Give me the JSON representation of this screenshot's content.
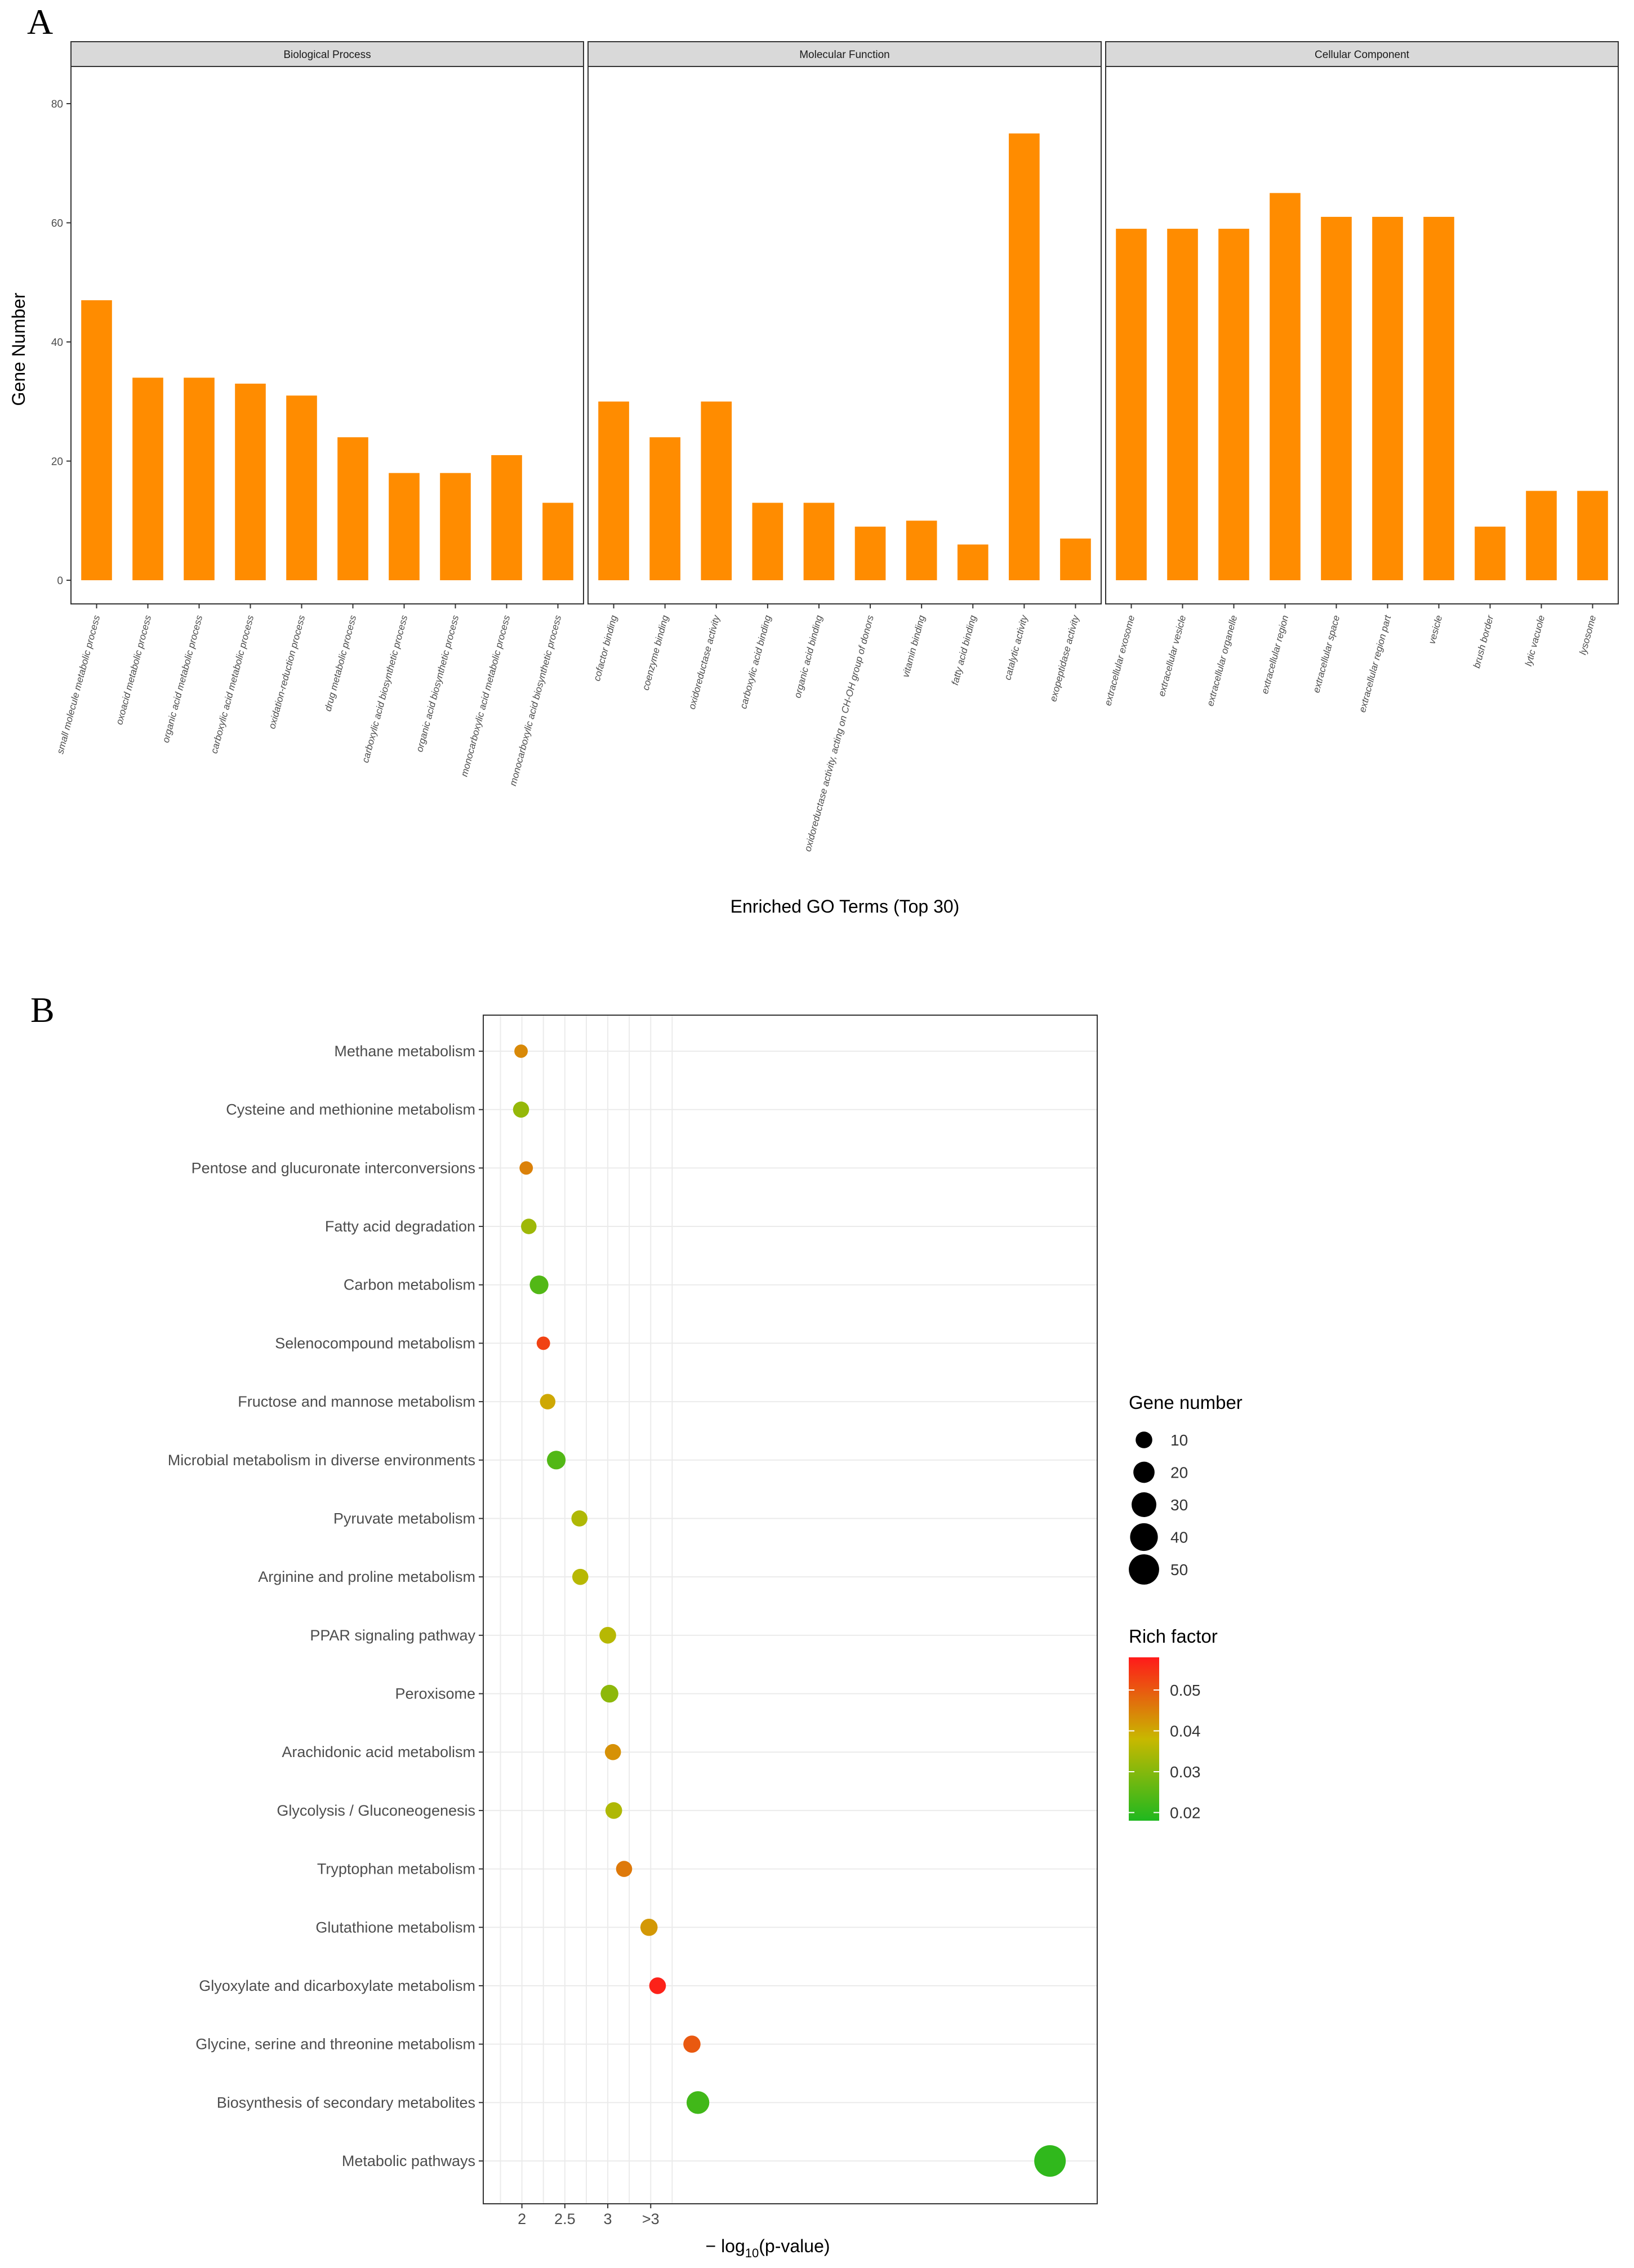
{
  "panel_labels": {
    "a": "A",
    "b": "B"
  },
  "chart_data": [
    {
      "type": "bar",
      "facets": [
        {
          "strip": "Biological Process",
          "categories": [
            "small molecule metabolic process",
            "oxoacid metabolic process",
            "organic acid metabolic process",
            "carboxylic acid metabolic process",
            "oxidation-reduction process",
            "drug metabolic process",
            "carboxylic acid biosynthetic process",
            "organic acid biosynthetic process",
            "monocarboxylic acid metabolic process",
            "monocarboxylic acid biosynthetic process"
          ],
          "values": [
            47,
            34,
            34,
            33,
            31,
            24,
            18,
            18,
            21,
            13
          ]
        },
        {
          "strip": "Molecular Function",
          "categories": [
            "cofactor binding",
            "coenzyme binding",
            "oxidoreductase activity",
            "carboxylic acid binding",
            "organic acid binding",
            "oxidoreductase activity, acting on CH-OH group of donors",
            "vitamin binding",
            "fatty acid binding",
            "catalytic activity",
            "exopeptidase activity"
          ],
          "values": [
            30,
            24,
            30,
            13,
            13,
            9,
            10,
            6,
            75,
            7
          ]
        },
        {
          "strip": "Cellular Component",
          "categories": [
            "extracellular exosome",
            "extracellular vesicle",
            "extracellular organelle",
            "extracellular region",
            "extracellular space",
            "extracellular region part",
            "vesicle",
            "brush border",
            "lytic vacuole",
            "lysosome"
          ],
          "values": [
            59,
            59,
            59,
            65,
            61,
            61,
            61,
            9,
            15,
            15
          ]
        }
      ],
      "ylabel": "Gene Number",
      "xlabel": "Enriched GO Terms (Top 30)",
      "ylim": [
        0,
        85
      ],
      "yticks": [
        0,
        20,
        40,
        60,
        80
      ],
      "bar_color": "#ff8c00",
      "grid": false
    },
    {
      "type": "scatter",
      "categories": [
        "Methane metabolism",
        "Cysteine and methionine metabolism",
        "Pentose and glucuronate interconversions",
        "Fatty acid degradation",
        "Carbon metabolism",
        "Selenocompound metabolism",
        "Fructose and mannose metabolism",
        "Microbial metabolism in diverse environments",
        "Pyruvate metabolism",
        "Arginine and proline metabolism",
        "PPAR signaling pathway",
        "Peroxisome",
        "Arachidonic acid metabolism",
        "Glycolysis / Gluconeogenesis",
        "Tryptophan metabolism",
        "Glutathione metabolism",
        "Glyoxylate and dicarboxylate metabolism",
        "Glycine, serine and threonine metabolism",
        "Biosynthesis of secondary metabolites",
        "Metabolic pathways"
      ],
      "x": [
        1.99,
        1.99,
        2.05,
        2.08,
        2.2,
        2.25,
        2.3,
        2.4,
        2.67,
        2.68,
        3.0,
        3.02,
        3.06,
        3.07,
        3.19,
        3.48,
        3.58,
        3.98,
        4.05,
        8.15
      ],
      "gene_number": [
        5,
        9,
        5,
        8,
        14,
        5,
        8,
        14,
        9,
        9,
        10,
        12,
        9,
        10,
        9,
        11,
        10,
        11,
        24,
        55
      ],
      "rich_factor": [
        0.044,
        0.032,
        0.045,
        0.033,
        0.024,
        0.053,
        0.04,
        0.024,
        0.035,
        0.036,
        0.036,
        0.031,
        0.043,
        0.035,
        0.046,
        0.042,
        0.057,
        0.05,
        0.022,
        0.02
      ],
      "xlabel": "− log10(p-value)",
      "xticks": [
        "2",
        "2.5",
        "3",
        ">3"
      ],
      "xlim": [
        1.55,
        8.7
      ],
      "grid": true,
      "legend_size": {
        "title": "Gene number",
        "values": [
          10,
          20,
          30,
          40,
          50
        ]
      },
      "legend_color": {
        "title": "Rich factor",
        "ticks": [
          0.05,
          0.04,
          0.03,
          0.02
        ],
        "range": [
          0.018,
          0.058
        ],
        "low_color": "#1fb81f",
        "mid_color": "#c8b800",
        "high_color": "#ff1a1a"
      }
    }
  ]
}
